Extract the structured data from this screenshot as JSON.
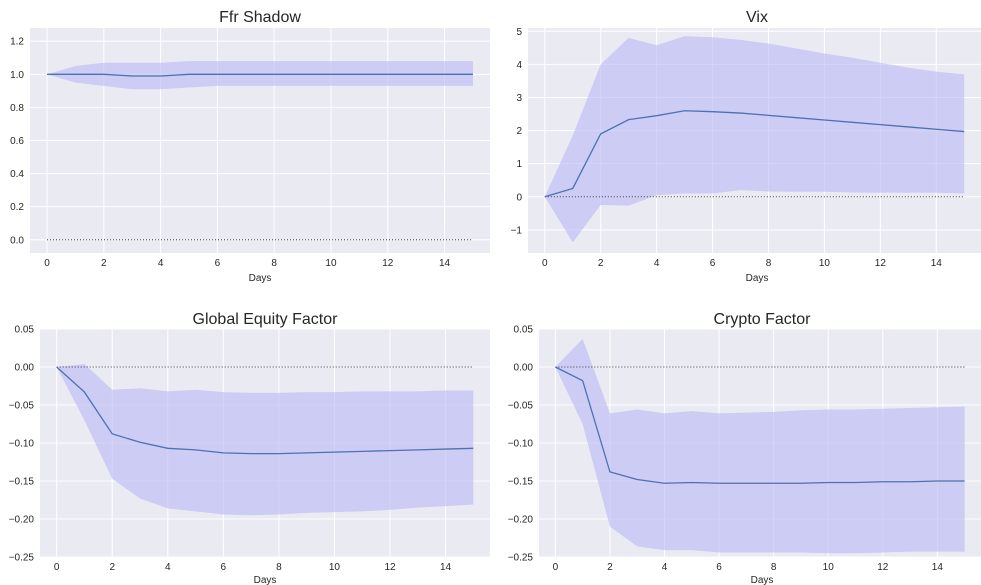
{
  "chart_data": [
    {
      "type": "line",
      "title": "Ffr Shadow",
      "xlabel": "Days",
      "ylabel": "",
      "xlim": [
        -0.6,
        15.6
      ],
      "ylim": [
        -0.08,
        1.28
      ],
      "xticks": [
        0,
        2,
        4,
        6,
        8,
        10,
        12,
        14
      ],
      "yticks": [
        0.0,
        0.2,
        0.4,
        0.6,
        0.8,
        1.0,
        1.2
      ],
      "ytick_labels": [
        "0.0",
        "0.2",
        "0.4",
        "0.6",
        "0.8",
        "1.0",
        "1.2"
      ],
      "grid": true,
      "x": [
        0,
        1,
        2,
        3,
        4,
        5,
        6,
        7,
        8,
        9,
        10,
        11,
        12,
        13,
        14,
        15
      ],
      "values": [
        1.0,
        1.0,
        1.0,
        0.99,
        0.99,
        1.0,
        1.0,
        1.0,
        1.0,
        1.0,
        1.0,
        1.0,
        1.0,
        1.0,
        1.0,
        1.0
      ],
      "lower": [
        1.0,
        0.95,
        0.93,
        0.91,
        0.91,
        0.92,
        0.93,
        0.93,
        0.93,
        0.93,
        0.93,
        0.93,
        0.93,
        0.93,
        0.93,
        0.93
      ],
      "upper": [
        1.0,
        1.05,
        1.07,
        1.07,
        1.07,
        1.08,
        1.08,
        1.08,
        1.08,
        1.08,
        1.08,
        1.08,
        1.08,
        1.08,
        1.08,
        1.08
      ],
      "zero_line": 0
    },
    {
      "type": "line",
      "title": "Vix",
      "xlabel": "Days",
      "ylabel": "",
      "xlim": [
        -0.6,
        15.6
      ],
      "ylim": [
        -1.7,
        5.1
      ],
      "xticks": [
        0,
        2,
        4,
        6,
        8,
        10,
        12,
        14
      ],
      "yticks": [
        -1,
        0,
        1,
        2,
        3,
        4,
        5
      ],
      "ytick_labels": [
        "−1",
        "0",
        "1",
        "2",
        "3",
        "4",
        "5"
      ],
      "grid": true,
      "x": [
        0,
        1,
        2,
        3,
        4,
        5,
        6,
        7,
        8,
        9,
        10,
        11,
        12,
        13,
        14,
        15
      ],
      "values": [
        0,
        0.25,
        1.9,
        2.33,
        2.45,
        2.6,
        2.57,
        2.53,
        2.46,
        2.39,
        2.32,
        2.25,
        2.18,
        2.11,
        2.04,
        1.97
      ],
      "lower": [
        0,
        -1.38,
        -0.25,
        -0.27,
        0.05,
        0.1,
        0.1,
        0.2,
        0.16,
        0.15,
        0.15,
        0.13,
        0.12,
        0.12,
        0.12,
        0.1
      ],
      "upper": [
        0,
        1.85,
        4.0,
        4.8,
        4.58,
        4.85,
        4.82,
        4.74,
        4.63,
        4.48,
        4.33,
        4.2,
        4.05,
        3.9,
        3.78,
        3.7
      ],
      "zero_line": 0
    },
    {
      "type": "line",
      "title": "Global Equity Factor",
      "xlabel": "Days",
      "ylabel": "",
      "xlim": [
        -0.6,
        15.6
      ],
      "ylim": [
        -0.25,
        0.05
      ],
      "xticks": [
        0,
        2,
        4,
        6,
        8,
        10,
        12,
        14
      ],
      "yticks": [
        -0.25,
        -0.2,
        -0.15,
        -0.1,
        -0.05,
        0.0,
        0.05
      ],
      "ytick_labels": [
        "−0.25",
        "−0.20",
        "−0.15",
        "−0.10",
        "−0.05",
        "0.00",
        "0.05"
      ],
      "grid": true,
      "x": [
        0,
        1,
        2,
        3,
        4,
        5,
        6,
        7,
        8,
        9,
        10,
        11,
        12,
        13,
        14,
        15
      ],
      "values": [
        0,
        -0.033,
        -0.088,
        -0.099,
        -0.107,
        -0.109,
        -0.113,
        -0.114,
        -0.114,
        -0.113,
        -0.112,
        -0.111,
        -0.11,
        -0.109,
        -0.108,
        -0.107
      ],
      "lower": [
        0,
        -0.07,
        -0.147,
        -0.173,
        -0.186,
        -0.19,
        -0.194,
        -0.195,
        -0.194,
        -0.192,
        -0.191,
        -0.19,
        -0.188,
        -0.185,
        -0.183,
        -0.181
      ],
      "upper": [
        0,
        0.004,
        -0.03,
        -0.028,
        -0.032,
        -0.03,
        -0.033,
        -0.034,
        -0.034,
        -0.033,
        -0.033,
        -0.032,
        -0.032,
        -0.032,
        -0.031,
        -0.031
      ],
      "zero_line": 0
    },
    {
      "type": "line",
      "title": "Crypto Factor",
      "xlabel": "Days",
      "ylabel": "",
      "xlim": [
        -0.6,
        15.6
      ],
      "ylim": [
        -0.25,
        0.05
      ],
      "xticks": [
        0,
        2,
        4,
        6,
        8,
        10,
        12,
        14
      ],
      "yticks": [
        -0.25,
        -0.2,
        -0.15,
        -0.1,
        -0.05,
        0.0,
        0.05
      ],
      "ytick_labels": [
        "−0.25",
        "−0.20",
        "−0.15",
        "−0.10",
        "−0.05",
        "0.00",
        "0.05"
      ],
      "grid": true,
      "x": [
        0,
        1,
        2,
        3,
        4,
        5,
        6,
        7,
        8,
        9,
        10,
        11,
        12,
        13,
        14,
        15
      ],
      "values": [
        0,
        -0.018,
        -0.138,
        -0.148,
        -0.153,
        -0.152,
        -0.153,
        -0.153,
        -0.153,
        -0.153,
        -0.152,
        -0.152,
        -0.151,
        -0.151,
        -0.15,
        -0.15
      ],
      "lower": [
        0,
        -0.075,
        -0.21,
        -0.236,
        -0.241,
        -0.241,
        -0.244,
        -0.244,
        -0.244,
        -0.244,
        -0.245,
        -0.245,
        -0.244,
        -0.243,
        -0.243,
        -0.243
      ],
      "upper": [
        0,
        0.037,
        -0.061,
        -0.056,
        -0.061,
        -0.058,
        -0.061,
        -0.06,
        -0.059,
        -0.057,
        -0.056,
        -0.056,
        -0.055,
        -0.054,
        -0.053,
        -0.052
      ],
      "zero_line": 0
    }
  ]
}
